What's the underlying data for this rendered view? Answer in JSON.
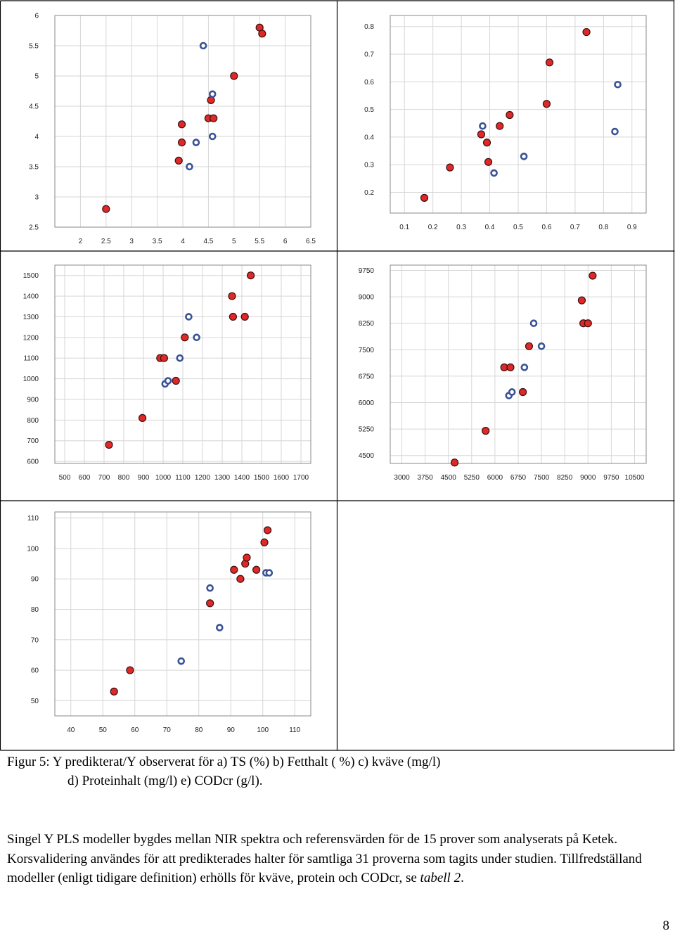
{
  "chart_data": [
    {
      "type": "scatter",
      "xlim": [
        1.5,
        6.5
      ],
      "ylim": [
        2.5,
        6
      ],
      "x_ticks": [
        "2",
        "2.5",
        "3",
        "3.5",
        "4",
        "4.5",
        "5",
        "5.5",
        "6",
        "6.5"
      ],
      "y_ticks": [
        "2.5",
        "3",
        "3.5",
        "4",
        "4.5",
        "5",
        "5.5",
        "6"
      ],
      "series": [
        {
          "color": "#e02828",
          "points": [
            [
              2.5,
              2.8
            ],
            [
              3.92,
              3.6
            ],
            [
              3.98,
              3.9
            ],
            [
              3.98,
              4.2
            ],
            [
              4.5,
              4.3
            ],
            [
              4.6,
              4.3
            ],
            [
              4.55,
              4.6
            ],
            [
              5.0,
              5.0
            ],
            [
              5.5,
              5.8
            ],
            [
              5.55,
              5.7
            ]
          ]
        },
        {
          "color": "#3a5396",
          "hollow": true,
          "points": [
            [
              4.13,
              3.5
            ],
            [
              4.26,
              3.9
            ],
            [
              4.58,
              4.0
            ],
            [
              4.58,
              4.7
            ],
            [
              4.4,
              5.5
            ]
          ]
        }
      ],
      "grid": true
    },
    {
      "type": "scatter",
      "xlim": [
        0.05,
        0.95
      ],
      "ylim": [
        0.125,
        0.84
      ],
      "x_ticks": [
        "0.1",
        "0.2",
        "0.3",
        "0.4",
        "0.5",
        "0.6",
        "0.7",
        "0.8",
        "0.9"
      ],
      "y_ticks": [
        "0.2",
        "0.3",
        "0.4",
        "0.5",
        "0.6",
        "0.7",
        "0.8"
      ],
      "series": [
        {
          "color": "#e02828",
          "points": [
            [
              0.17,
              0.18
            ],
            [
              0.26,
              0.29
            ],
            [
              0.37,
              0.41
            ],
            [
              0.39,
              0.38
            ],
            [
              0.395,
              0.31
            ],
            [
              0.435,
              0.44
            ],
            [
              0.47,
              0.48
            ],
            [
              0.6,
              0.52
            ],
            [
              0.61,
              0.67
            ],
            [
              0.74,
              0.78
            ]
          ]
        },
        {
          "color": "#3a5396",
          "hollow": true,
          "points": [
            [
              0.415,
              0.27
            ],
            [
              0.375,
              0.44
            ],
            [
              0.52,
              0.33
            ],
            [
              0.84,
              0.42
            ],
            [
              0.85,
              0.59
            ]
          ]
        }
      ],
      "grid": true
    },
    {
      "type": "scatter",
      "xlim": [
        450,
        1750
      ],
      "ylim": [
        590,
        1550
      ],
      "x_ticks": [
        "500",
        "600",
        "700",
        "800",
        "900",
        "1000",
        "1100",
        "1200",
        "1300",
        "1400",
        "1500",
        "1600",
        "1700"
      ],
      "y_ticks": [
        "600",
        "700",
        "800",
        "900",
        "1000",
        "1100",
        "1200",
        "1300",
        "1400",
        "1500"
      ],
      "series": [
        {
          "color": "#e02828",
          "points": [
            [
              725,
              680
            ],
            [
              895,
              810
            ],
            [
              985,
              1100
            ],
            [
              1005,
              1100
            ],
            [
              1065,
              990
            ],
            [
              1110,
              1200
            ],
            [
              1350,
              1400
            ],
            [
              1355,
              1300
            ],
            [
              1415,
              1300
            ],
            [
              1445,
              1500
            ]
          ]
        },
        {
          "color": "#3a5396",
          "hollow": true,
          "points": [
            [
              1010,
              975
            ],
            [
              1025,
              990
            ],
            [
              1085,
              1100
            ],
            [
              1130,
              1300
            ],
            [
              1170,
              1200
            ]
          ]
        }
      ],
      "grid": true
    },
    {
      "type": "scatter",
      "xlim": [
        2625,
        10875
      ],
      "ylim": [
        4275,
        9900
      ],
      "x_ticks": [
        "3000",
        "3750",
        "4500",
        "5250",
        "6000",
        "6750",
        "7500",
        "8250",
        "9000",
        "9750",
        "10500"
      ],
      "y_ticks": [
        "4500",
        "5250",
        "6000",
        "6750",
        "7500",
        "8250",
        "9000",
        "9750"
      ],
      "series": [
        {
          "color": "#e02828",
          "points": [
            [
              4700,
              4300
            ],
            [
              5700,
              5200
            ],
            [
              6300,
              7000
            ],
            [
              6500,
              7000
            ],
            [
              6900,
              6300
            ],
            [
              7100,
              7600
            ],
            [
              8800,
              8900
            ],
            [
              8850,
              8250
            ],
            [
              9000,
              8250
            ],
            [
              9150,
              9600
            ]
          ]
        },
        {
          "color": "#3a5396",
          "hollow": true,
          "points": [
            [
              6450,
              6200
            ],
            [
              6550,
              6300
            ],
            [
              6950,
              7000
            ],
            [
              7250,
              8250
            ],
            [
              7500,
              7600
            ]
          ]
        }
      ],
      "grid": true
    },
    {
      "type": "scatter",
      "xlim": [
        35,
        115
      ],
      "ylim": [
        45,
        112
      ],
      "x_ticks": [
        "40",
        "50",
        "60",
        "70",
        "80",
        "90",
        "100",
        "110"
      ],
      "y_ticks": [
        "50",
        "60",
        "70",
        "80",
        "90",
        "100",
        "110"
      ],
      "series": [
        {
          "color": "#e02828",
          "points": [
            [
              53.5,
              53
            ],
            [
              58.5,
              60
            ],
            [
              83.5,
              82
            ],
            [
              91,
              93
            ],
            [
              93,
              90
            ],
            [
              94.5,
              95
            ],
            [
              95,
              97
            ],
            [
              98,
              93
            ],
            [
              100.5,
              102
            ],
            [
              101.5,
              106
            ]
          ]
        },
        {
          "color": "#3a5396",
          "hollow": true,
          "points": [
            [
              74.5,
              63
            ],
            [
              86.5,
              74
            ],
            [
              83.5,
              87
            ],
            [
              101,
              92
            ],
            [
              102,
              92
            ]
          ]
        }
      ],
      "grid": true
    }
  ],
  "caption": {
    "line1": "Figur 5: Y predikterat/Y observerat för a) TS (%) b) Fetthalt ( %) c) kväve (mg/l)",
    "line2": "d) Proteinhalt (mg/l) e) CODcr (g/l)."
  },
  "body": {
    "text": "Singel Y PLS modeller bygdes mellan NIR spektra och referensvärden för de 15 prover som analyserats på Ketek. Korsvalidering användes för att predikterades halter för samtliga 31 proverna som tagits under studien. Tillfredställand modeller (enligt tidigare definition) erhölls för kväve, protein och CODcr, se ",
    "table_ref": "tabell 2",
    "end": "."
  },
  "page_number": "8"
}
